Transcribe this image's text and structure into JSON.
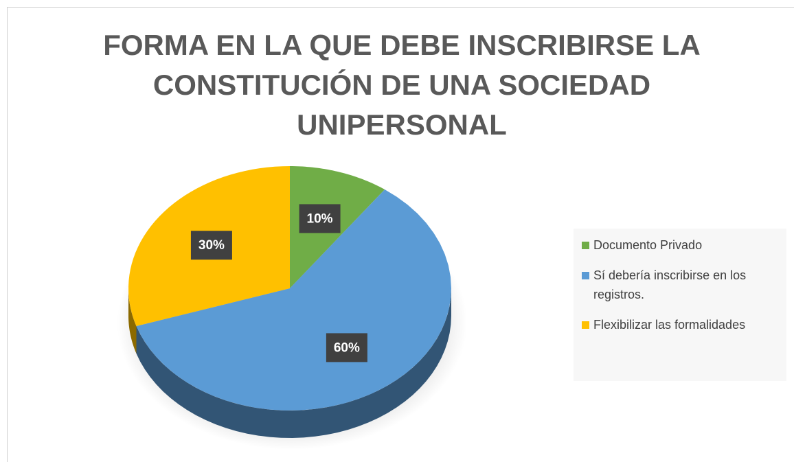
{
  "chart_data": {
    "type": "pie",
    "title": [
      "FORMA EN LA QUE DEBE INSCRIBIRSE LA",
      "CONSTITUCIÓN DE UNA SOCIEDAD",
      "UNIPERSONAL"
    ],
    "categories": [
      "Documento Privado",
      "Sí debería inscribirse en los registros.",
      "Flexibilizar las formalidades"
    ],
    "values": [
      10,
      60,
      30
    ],
    "value_labels": [
      "10%",
      "60%",
      "30%"
    ],
    "colors": [
      "#70ad47",
      "#5b9bd5",
      "#ffc000"
    ],
    "legend": "right"
  }
}
